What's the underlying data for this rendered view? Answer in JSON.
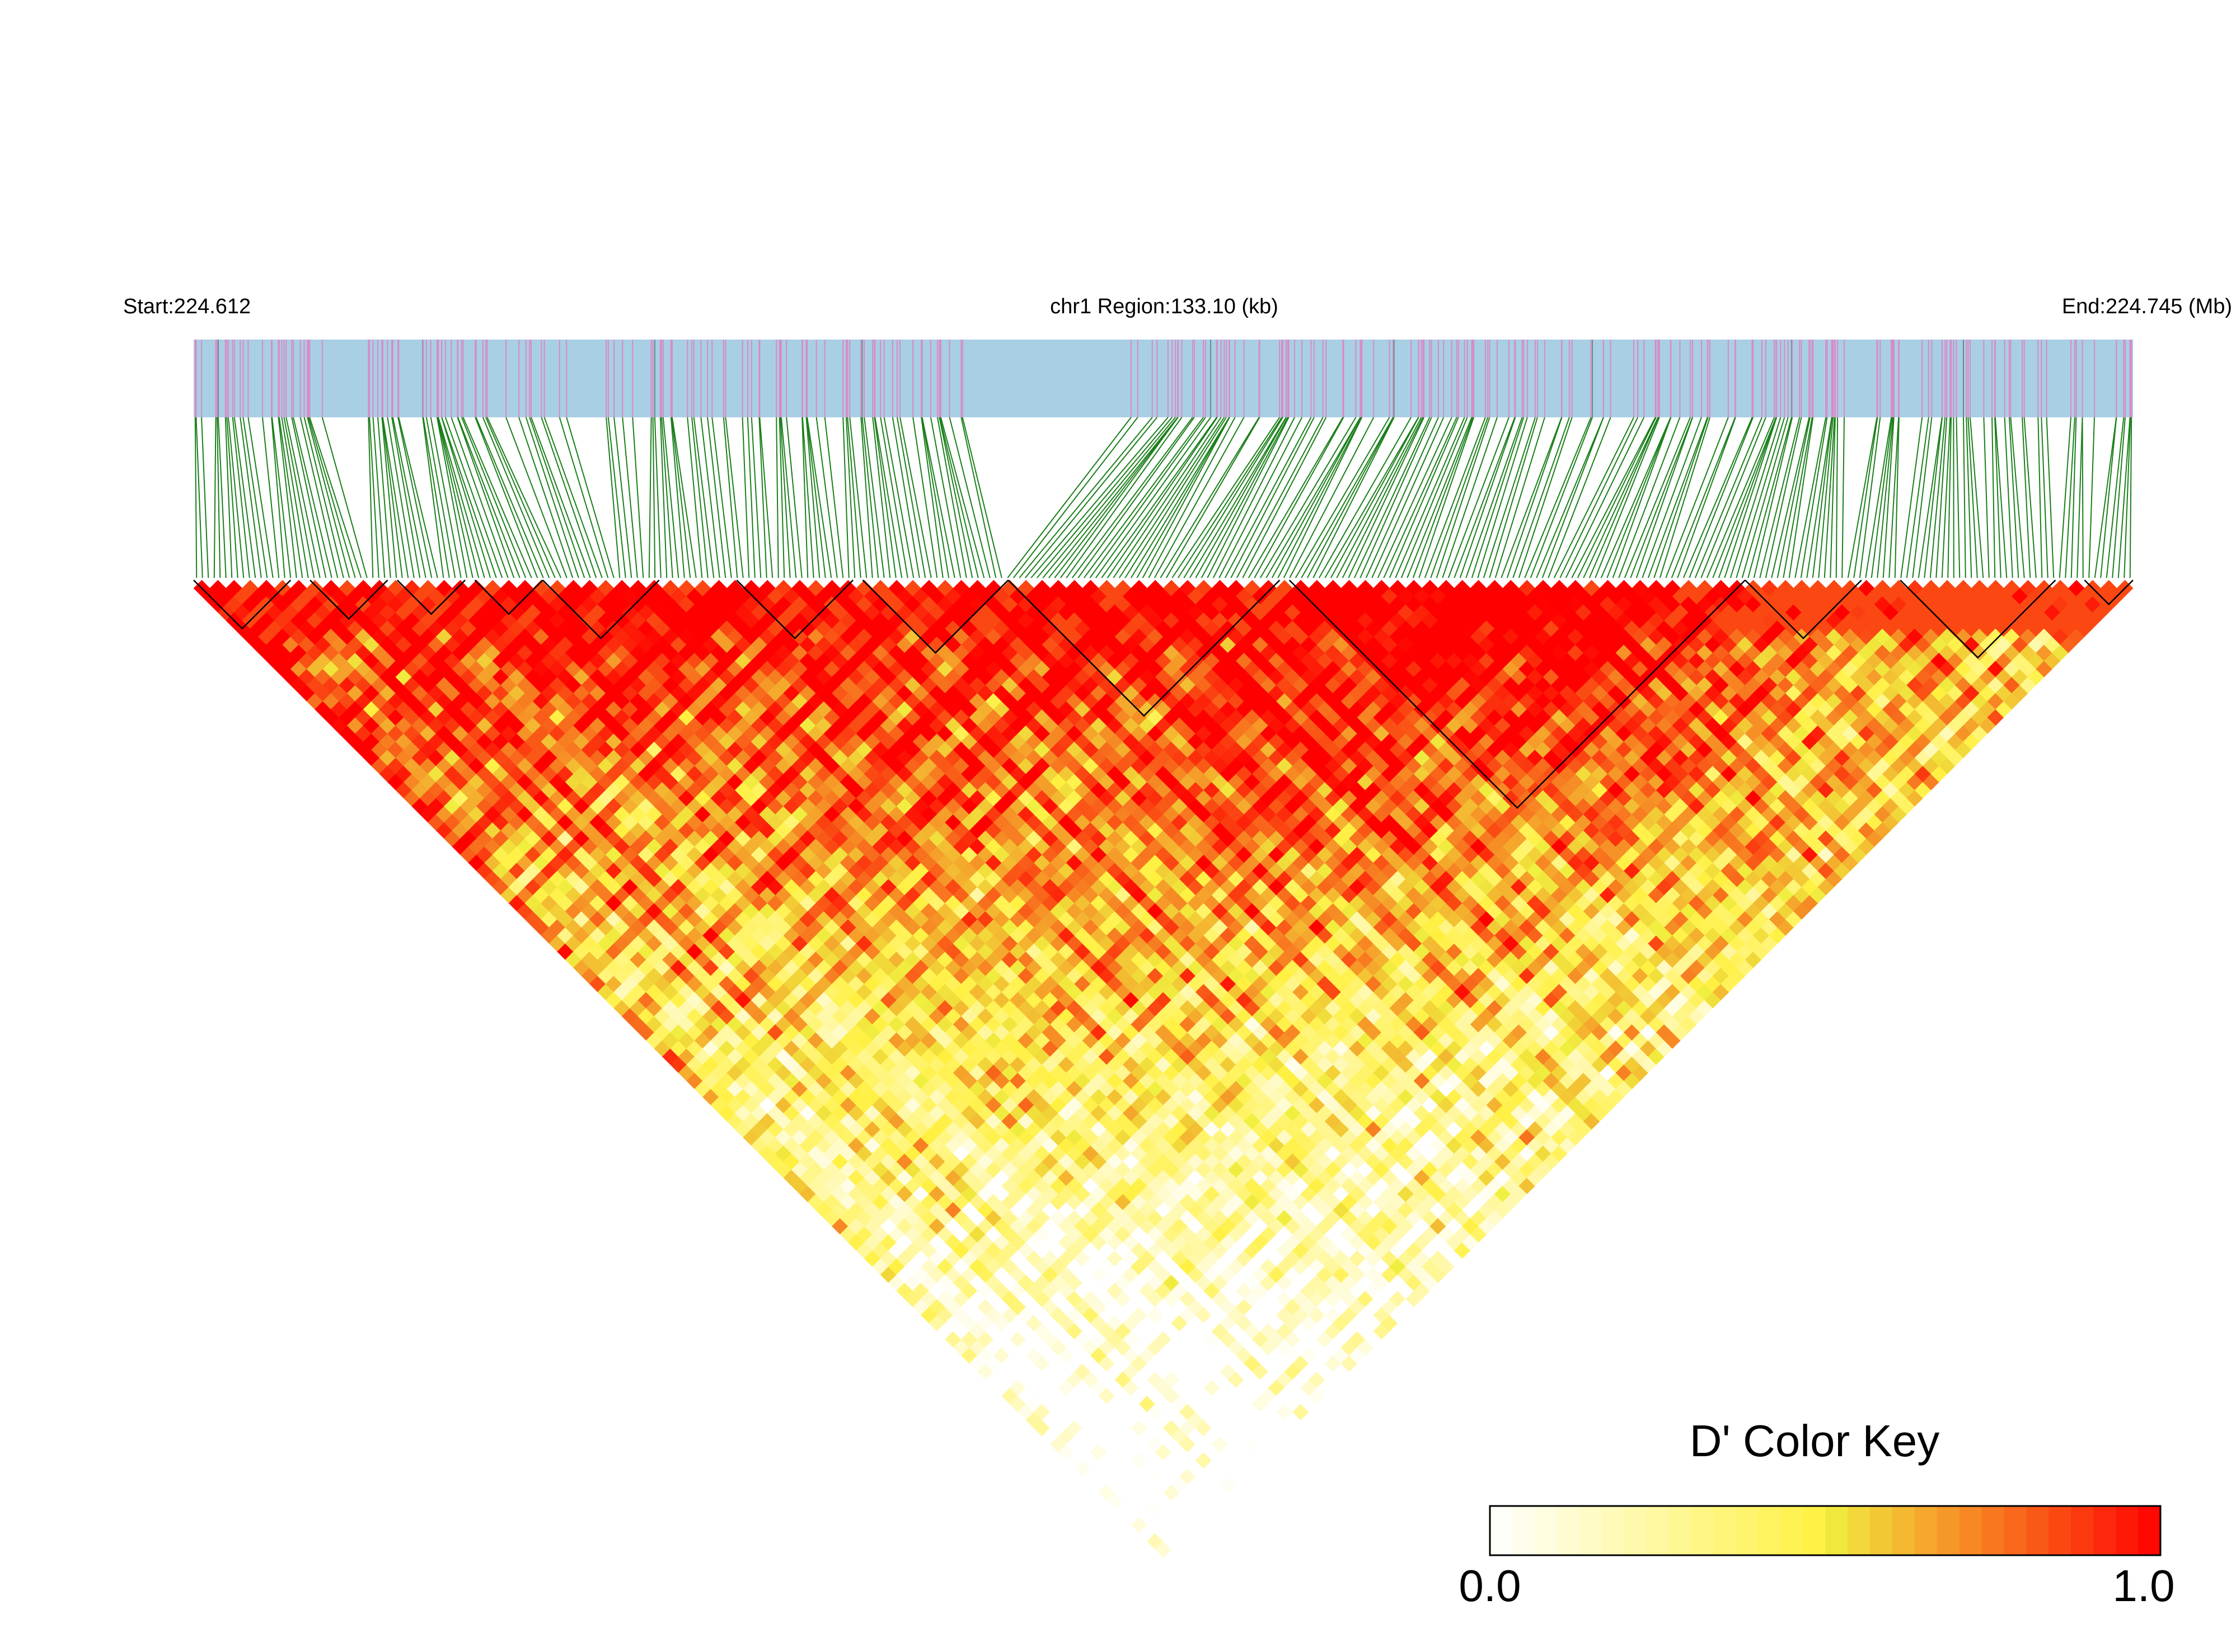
{
  "header": {
    "start_label": "Start:224.612",
    "region_label": "chr1 Region:133.10 (kb)",
    "end_label": "End:224.745 (Mb)"
  },
  "colors": {
    "track_background": "#a8cfe3",
    "snp_tick": "#d98ac8",
    "dense_snp_tick": "#6e8a8a",
    "connector_line": "#1a7f1a",
    "block_outline": "#000000",
    "key_low": "#ffffff",
    "key_mid": "#f0e640",
    "key_high": "#ff0000"
  },
  "chart_data": {
    "type": "heatmap",
    "description_type": "linkage-disequilibrium-triangle",
    "chromosome": "chr1",
    "region_start_mb": 224.612,
    "region_end_mb": 224.745,
    "region_length_kb": 133.1,
    "value_range": [
      0.0,
      1.0
    ],
    "color_key": {
      "title": "D' Color Key",
      "min_label": "0.0",
      "max_label": "1.0"
    },
    "snp_count_approx": 330,
    "ld_blocks_fraction": [
      [
        0.0,
        0.05
      ],
      [
        0.06,
        0.1
      ],
      [
        0.105,
        0.14
      ],
      [
        0.145,
        0.18
      ],
      [
        0.18,
        0.24
      ],
      [
        0.28,
        0.34
      ],
      [
        0.345,
        0.42
      ],
      [
        0.42,
        0.56
      ],
      [
        0.565,
        0.8
      ],
      [
        0.8,
        0.86
      ],
      [
        0.88,
        0.96
      ],
      [
        0.975,
        1.0
      ]
    ]
  }
}
